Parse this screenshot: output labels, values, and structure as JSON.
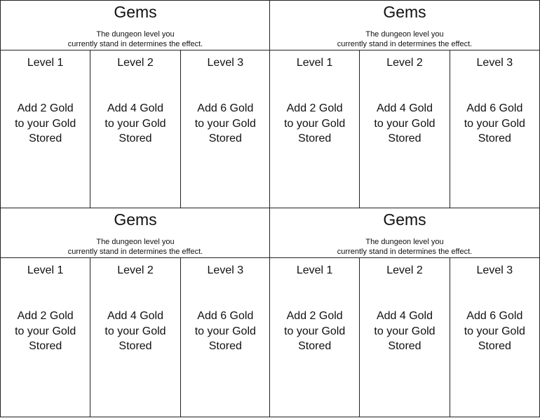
{
  "cards": [
    {
      "title": "Gems",
      "description": [
        "The dungeon level you",
        "currently stand in determines the effect."
      ],
      "levels": [
        {
          "label": "Level 1",
          "effect": [
            "Add 2 Gold",
            "to your Gold",
            "Stored"
          ]
        },
        {
          "label": "Level 2",
          "effect": [
            "Add 4 Gold",
            "to your Gold",
            "Stored"
          ]
        },
        {
          "label": "Level 3",
          "effect": [
            "Add 6 Gold",
            "to your Gold",
            "Stored"
          ]
        }
      ]
    },
    {
      "title": "Gems",
      "description": [
        "The dungeon level you",
        "currently stand in determines the effect."
      ],
      "levels": [
        {
          "label": "Level 1",
          "effect": [
            "Add 2 Gold",
            "to your Gold",
            "Stored"
          ]
        },
        {
          "label": "Level 2",
          "effect": [
            "Add 4 Gold",
            "to your Gold",
            "Stored"
          ]
        },
        {
          "label": "Level 3",
          "effect": [
            "Add 6 Gold",
            "to your Gold",
            "Stored"
          ]
        }
      ]
    },
    {
      "title": "Gems",
      "description": [
        "The dungeon level you",
        "currently stand in determines the effect."
      ],
      "levels": [
        {
          "label": "Level 1",
          "effect": [
            "Add 2 Gold",
            "to your Gold",
            "Stored"
          ]
        },
        {
          "label": "Level 2",
          "effect": [
            "Add 4 Gold",
            "to your Gold",
            "Stored"
          ]
        },
        {
          "label": "Level 3",
          "effect": [
            "Add 6 Gold",
            "to your Gold",
            "Stored"
          ]
        }
      ]
    },
    {
      "title": "Gems",
      "description": [
        "The dungeon level you",
        "currently stand in determines the effect."
      ],
      "levels": [
        {
          "label": "Level 1",
          "effect": [
            "Add 2 Gold",
            "to your Gold",
            "Stored"
          ]
        },
        {
          "label": "Level 2",
          "effect": [
            "Add 4 Gold",
            "to your Gold",
            "Stored"
          ]
        },
        {
          "label": "Level 3",
          "effect": [
            "Add 6 Gold",
            "to your Gold",
            "Stored"
          ]
        }
      ]
    }
  ]
}
